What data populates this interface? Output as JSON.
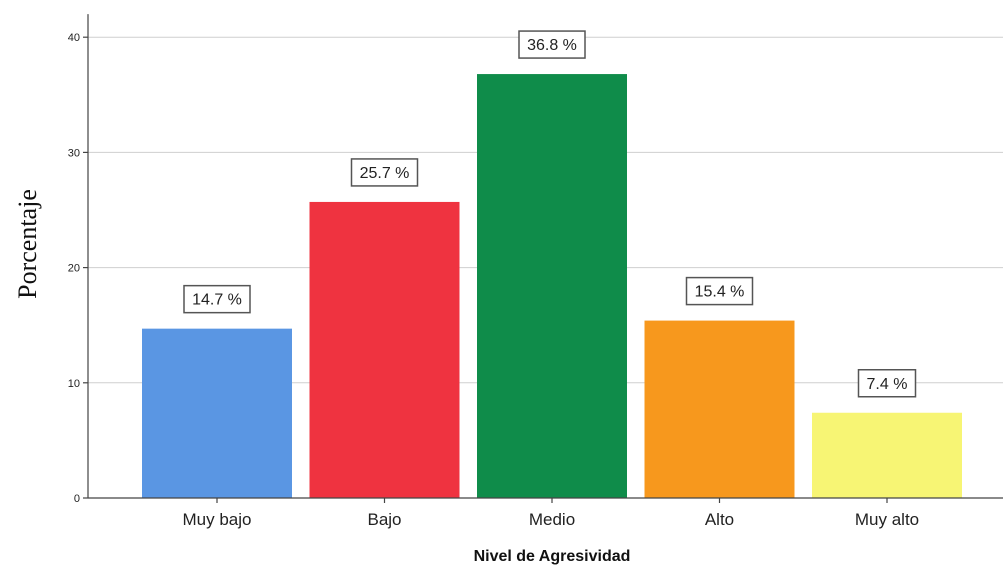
{
  "chart_data": {
    "type": "bar",
    "categories": [
      "Muy bajo",
      "Bajo",
      "Medio",
      "Alto",
      "Muy alto"
    ],
    "values": [
      14.7,
      25.7,
      36.8,
      15.4,
      7.4
    ],
    "data_labels": [
      "14.7 %",
      "25.7 %",
      "36.8 %",
      "15.4 %",
      "7.4 %"
    ],
    "colors": [
      "#5a96e3",
      "#ef3340",
      "#0f8c4a",
      "#f7981d",
      "#f7f574"
    ],
    "xlabel": "Nivel de Agresividad",
    "ylabel": "Porcentaje",
    "ylim": [
      0,
      42
    ],
    "yticks": [
      0,
      10,
      20,
      30,
      40
    ],
    "ytick_labels": [
      "0",
      "10",
      "20",
      "30",
      "40"
    ],
    "grid": true
  }
}
